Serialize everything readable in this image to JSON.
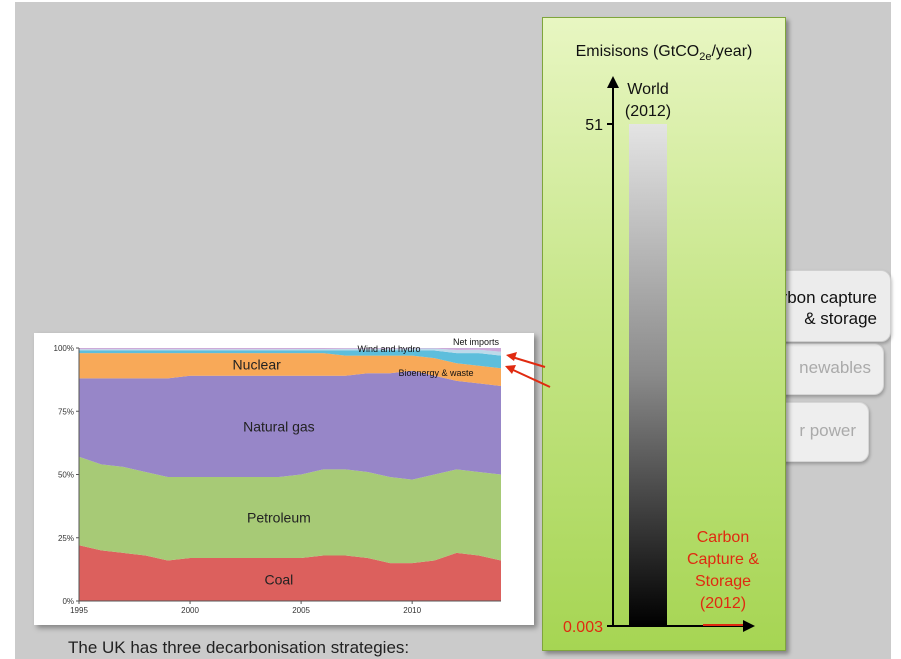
{
  "caption": "The UK has three decarbonisation strategies:",
  "strategies": {
    "ccs": {
      "number": "3",
      "line1": "Carbon capture",
      "line2": "& storage"
    },
    "renewables": {
      "label_visible": "newables"
    },
    "nuclear": {
      "label_visible": "r power"
    }
  },
  "colors": {
    "slide_bg": "#cbcbcb",
    "panel_green": "#b5dd6a",
    "accent_red": "#e02a10",
    "coal": "#d9534f",
    "petroleum": "#9fc56a",
    "natural_gas": "#8e7cc3",
    "nuclear": "#f7a24a",
    "bioenergy": "#4fb8d9",
    "wind_hydro": "#b6d7e8",
    "net_imports": "#c9a3d6"
  },
  "chart_data": [
    {
      "type": "bar",
      "title": "Emisisons (GtCO2e/year)",
      "title_parts": {
        "pre": "Emisisons (GtCO",
        "sub": "2e",
        "post": "/year)"
      },
      "y_ticks": [
        "51",
        "0.003"
      ],
      "y_scale": "log",
      "ylim": [
        0.003,
        51
      ],
      "bars": [
        {
          "name": "World (2012)",
          "label_lines": [
            "World",
            "(2012)"
          ],
          "value": 51
        },
        {
          "name": "Carbon Capture & Storage (2012)",
          "label_lines": [
            "Carbon",
            "Capture &",
            "Storage",
            "(2012)"
          ],
          "value": 0.003
        }
      ]
    },
    {
      "type": "area",
      "stacked": true,
      "normalized": true,
      "x": [
        1995,
        1996,
        1997,
        1998,
        1999,
        2000,
        2001,
        2002,
        2003,
        2004,
        2005,
        2006,
        2007,
        2008,
        2009,
        2010,
        2011,
        2012,
        2013,
        2014
      ],
      "x_ticks": [
        "1995",
        "2000",
        "2005",
        "2010"
      ],
      "y_ticks": [
        "0%",
        "25%",
        "50%",
        "75%",
        "100%"
      ],
      "ylim": [
        0,
        100
      ],
      "series": [
        {
          "name": "Coal",
          "color": "#d9534f",
          "values": [
            22,
            20,
            19,
            18,
            16,
            17,
            17,
            17,
            17,
            17,
            17,
            18,
            18,
            17,
            15,
            15,
            16,
            19,
            18,
            16
          ]
        },
        {
          "name": "Petroleum",
          "color": "#9fc56a",
          "values": [
            35,
            34,
            34,
            33,
            33,
            32,
            32,
            32,
            32,
            32,
            33,
            34,
            34,
            34,
            34,
            33,
            34,
            33,
            33,
            34
          ]
        },
        {
          "name": "Natural gas",
          "color": "#8e7cc3",
          "values": [
            31,
            34,
            35,
            37,
            39,
            40,
            40,
            40,
            40,
            40,
            39,
            37,
            37,
            39,
            41,
            43,
            39,
            35,
            35,
            35
          ]
        },
        {
          "name": "Nuclear",
          "color": "#f7a24a",
          "values": [
            10,
            10,
            10,
            10,
            10,
            9,
            9,
            9,
            9,
            9,
            9,
            9,
            8,
            7,
            7,
            6,
            7,
            7,
            7,
            7
          ]
        },
        {
          "name": "Bioenergy & waste",
          "color": "#4fb8d9",
          "values": [
            1,
            1,
            1,
            1,
            1,
            1,
            1,
            1,
            1,
            1,
            1,
            1,
            2,
            2,
            2,
            2,
            3,
            4,
            5,
            5
          ]
        },
        {
          "name": "Wind and hydro",
          "color": "#b6d7e8",
          "values": [
            0.5,
            0.5,
            0.5,
            0.5,
            0.5,
            0.5,
            0.5,
            0.5,
            0.5,
            0.5,
            0.6,
            0.6,
            0.7,
            0.7,
            0.7,
            0.8,
            0.8,
            1.2,
            1.3,
            1.5
          ]
        },
        {
          "name": "Net imports",
          "color": "#c9a3d6",
          "values": [
            0.5,
            0.5,
            0.5,
            0.5,
            0.5,
            0.5,
            0.5,
            0.5,
            0.5,
            0.5,
            0.4,
            0.4,
            0.3,
            0.3,
            0.3,
            0.2,
            0.2,
            0.8,
            0.7,
            1.5
          ]
        }
      ]
    }
  ]
}
